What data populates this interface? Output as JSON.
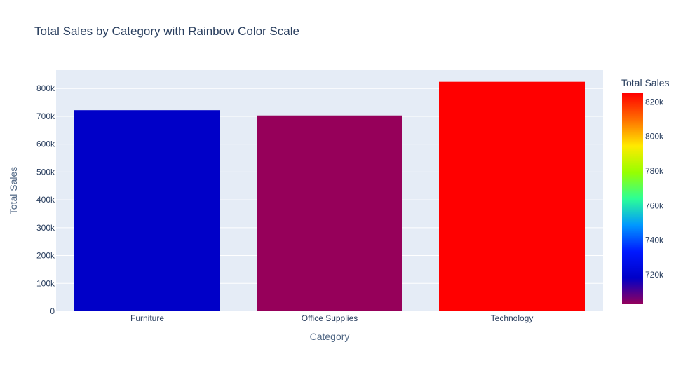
{
  "chart_data": {
    "type": "bar",
    "title": "Total Sales by Category with Rainbow Color Scale",
    "xlabel": "Category",
    "ylabel": "Total Sales",
    "categories": [
      "Furniture",
      "Office Supplies",
      "Technology"
    ],
    "values": [
      722000,
      703000,
      824000
    ],
    "ylim": [
      0,
      866000
    ],
    "yticks": [
      0,
      100000,
      200000,
      300000,
      400000,
      500000,
      600000,
      700000,
      800000
    ],
    "ytick_labels": [
      "0",
      "100k",
      "200k",
      "300k",
      "400k",
      "500k",
      "600k",
      "700k",
      "800k"
    ],
    "grid": true,
    "plot_background": "#e5ecf6",
    "colorbar": {
      "title": "Total Sales",
      "range": [
        703000,
        825000
      ],
      "ticks": [
        720000,
        740000,
        760000,
        780000,
        800000,
        820000
      ],
      "tick_labels": [
        "720k",
        "740k",
        "760k",
        "780k",
        "800k",
        "820k"
      ],
      "colorscale": [
        "#96005a",
        "#0000c8",
        "#0019ff",
        "#0098ff",
        "#2cff96",
        "#97ff00",
        "#ffea00",
        "#ff6f00",
        "#ff0000"
      ]
    },
    "bar_colors": [
      "#0000c8",
      "#96005a",
      "#ff0000"
    ]
  }
}
